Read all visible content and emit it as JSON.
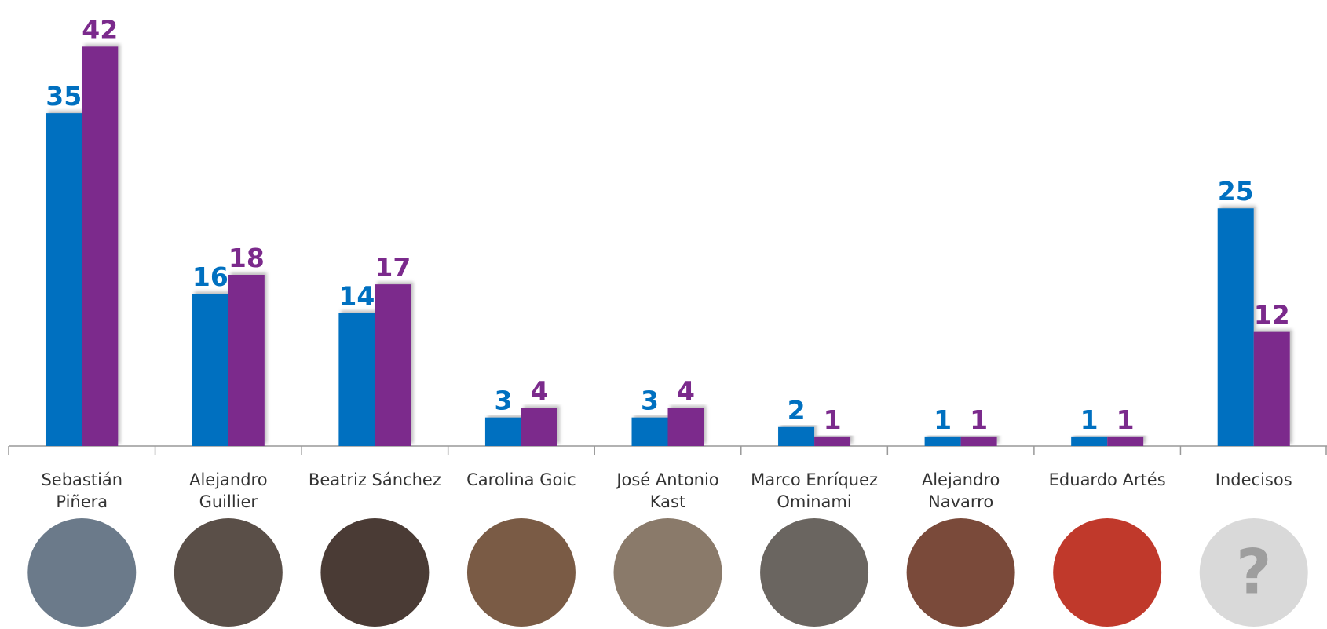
{
  "chart_data": {
    "type": "bar",
    "categories": [
      [
        "Sebastián",
        "Piñera"
      ],
      [
        "Alejandro",
        "Guillier"
      ],
      [
        "Beatriz Sánchez"
      ],
      [
        "Carolina Goic"
      ],
      [
        "José Antonio",
        "Kast"
      ],
      [
        "Marco Enríquez",
        "Ominami"
      ],
      [
        "Alejandro",
        "Navarro"
      ],
      [
        "Eduardo Artés"
      ],
      [
        "Indecisos"
      ]
    ],
    "series": [
      {
        "color": "#0070c0",
        "values": [
          35,
          16,
          14,
          3,
          3,
          2,
          1,
          1,
          25
        ]
      },
      {
        "color": "#7b2a8c",
        "values": [
          42,
          18,
          17,
          4,
          4,
          1,
          1,
          1,
          12
        ]
      }
    ],
    "ylim": [
      0,
      45
    ],
    "photo_placeholder": "?"
  }
}
